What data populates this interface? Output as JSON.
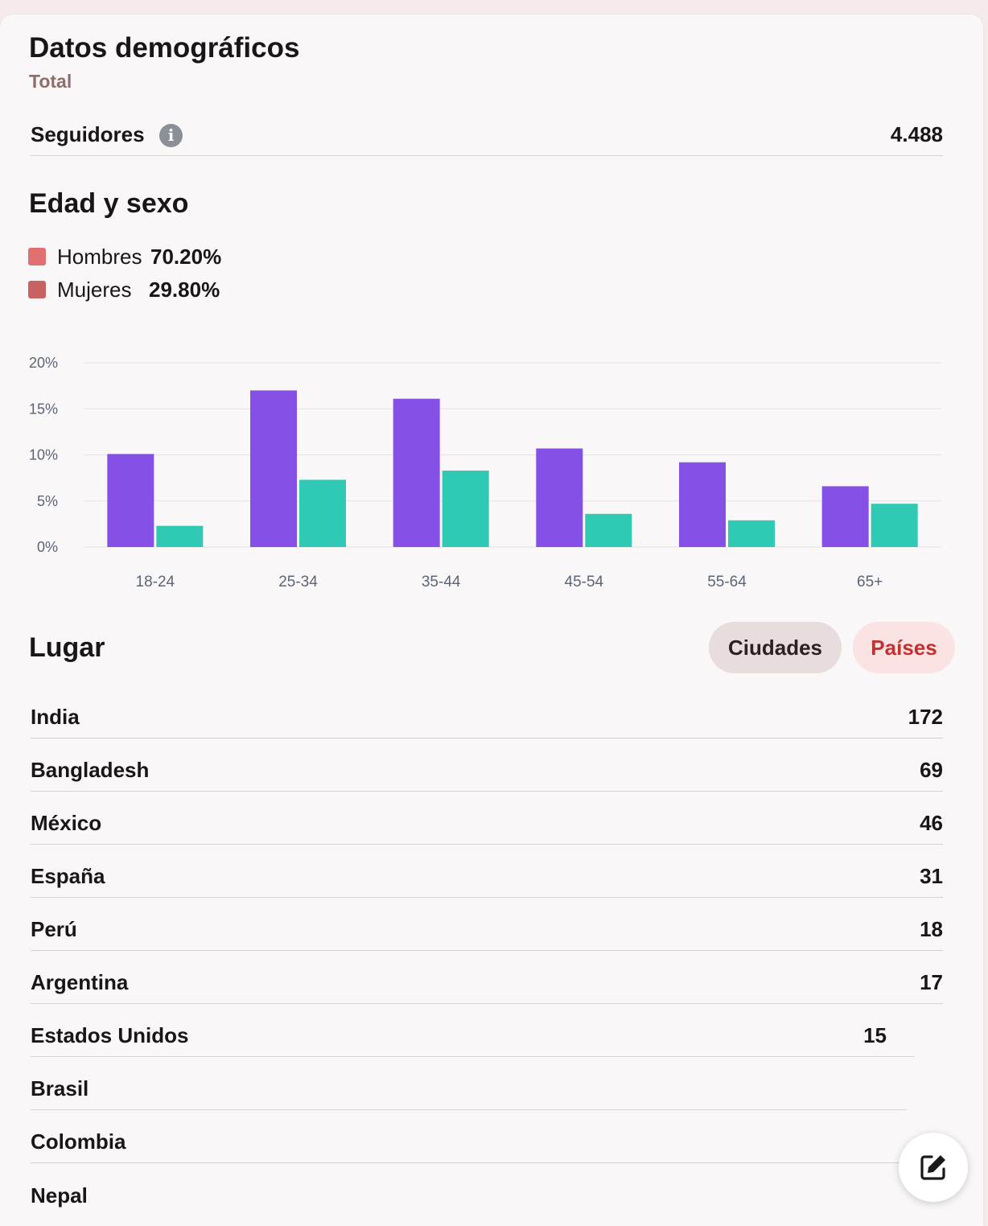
{
  "header": {
    "title": "Datos demográficos",
    "subtitle": "Total"
  },
  "followers": {
    "label": "Seguidores",
    "value": "4.488",
    "info_icon": "info-icon"
  },
  "age_gender": {
    "title": "Edad y sexo",
    "legend": [
      {
        "label": "Hombres",
        "value": "70.20%",
        "color": "#e07070"
      },
      {
        "label": "Mujeres",
        "value": "29.80%",
        "color": "#c86262"
      }
    ]
  },
  "chart_data": {
    "type": "bar",
    "categories": [
      "18-24",
      "25-34",
      "35-44",
      "45-54",
      "55-64",
      "65+"
    ],
    "series": [
      {
        "values": [
          10.1,
          17.0,
          16.1,
          10.7,
          9.2,
          6.6
        ],
        "color": "#8450e6"
      },
      {
        "values": [
          2.3,
          7.3,
          8.3,
          3.6,
          2.9,
          4.7
        ],
        "color": "#30c9b3"
      }
    ],
    "yticks": [
      "0%",
      "5%",
      "10%",
      "15%",
      "20%"
    ],
    "ylim": [
      0,
      20
    ],
    "grid": true
  },
  "location": {
    "title": "Lugar",
    "tabs": {
      "cities": "Ciudades",
      "countries": "Países"
    },
    "rows": [
      {
        "name": "India",
        "value": "172"
      },
      {
        "name": "Bangladesh",
        "value": "69"
      },
      {
        "name": "México",
        "value": "46"
      },
      {
        "name": "España",
        "value": "31"
      },
      {
        "name": "Perú",
        "value": "18"
      },
      {
        "name": "Argentina",
        "value": "17"
      },
      {
        "name": "Estados Unidos",
        "value": "15"
      },
      {
        "name": "Brasil",
        "value": ""
      },
      {
        "name": "Colombia",
        "value": ""
      },
      {
        "name": "Nepal",
        "value": ""
      }
    ]
  },
  "fab": {
    "icon": "edit-icon"
  }
}
